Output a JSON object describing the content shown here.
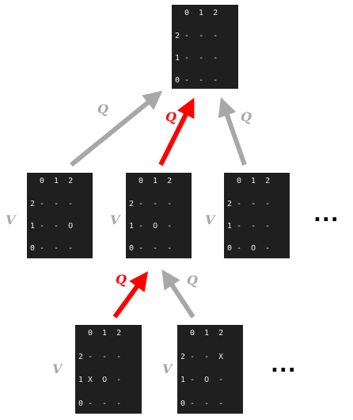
{
  "colors": {
    "gray_arrow": "#a8a8a8",
    "red_arrow": "#ff0000",
    "board_bg": "#1f1f1f"
  },
  "labels": {
    "q": "Q",
    "v": "V",
    "ellipsis": "..."
  },
  "boards": {
    "root": {
      "cols": "0  1  2",
      "rows": [
        "2 -  -  -",
        "1 -  -  -",
        "0 -  -  -"
      ]
    },
    "level1_a": {
      "cols": "0  1  2",
      "rows": [
        "2 -  -  -",
        "1 -  -  O",
        "0 -  -  -"
      ]
    },
    "level1_b": {
      "cols": "0  1  2",
      "rows": [
        "2 -  -  -",
        "1 -  O  -",
        "0 -  -  -"
      ]
    },
    "level1_c": {
      "cols": "0  1  2",
      "rows": [
        "2 -  -  -",
        "1 -  -  -",
        "0 -  O  -"
      ]
    },
    "level2_a": {
      "cols": "0  1  2",
      "rows": [
        "2 -  -  -",
        "1 X  O  -",
        "0 -  -  -"
      ]
    },
    "level2_b": {
      "cols": "0  1  2",
      "rows": [
        "2 -  -  X",
        "1 -  O  -",
        "0 -  -  -"
      ]
    }
  }
}
